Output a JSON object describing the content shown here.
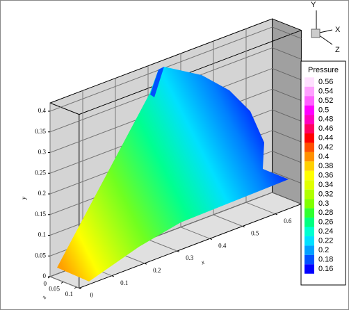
{
  "chart_data": {
    "type": "contour3d",
    "xlabel": "x",
    "ylabel": "y",
    "zlabel": "z",
    "xlim": [
      0,
      0.68
    ],
    "ylim": [
      0,
      0.42
    ],
    "zlim": [
      0,
      0.11
    ],
    "xticks": [
      0,
      0.1,
      0.2,
      0.3,
      0.4,
      0.5,
      0.6
    ],
    "yticks": [
      0,
      0.05,
      0.1,
      0.15,
      0.2,
      0.25,
      0.3,
      0.35,
      0.4
    ],
    "zticks": [
      0,
      0.05,
      0.1
    ],
    "grid": true,
    "legend_title": "Pressure",
    "levels": [
      0.56,
      0.54,
      0.52,
      0.5,
      0.48,
      0.46,
      0.44,
      0.42,
      0.4,
      0.38,
      0.36,
      0.34,
      0.32,
      0.3,
      0.28,
      0.26,
      0.24,
      0.22,
      0.2,
      0.18,
      0.16
    ],
    "colors": [
      "#ffe0ff",
      "#ffa0ff",
      "#ff60ff",
      "#ff00ff",
      "#ff00c0",
      "#ff0060",
      "#ff0000",
      "#ff5000",
      "#ff9000",
      "#ffd000",
      "#ffff00",
      "#e0ff00",
      "#b0ff00",
      "#80ff00",
      "#30ff30",
      "#00ff80",
      "#00ffd0",
      "#00e0ff",
      "#00a0ff",
      "#0050ff",
      "#0000ff"
    ],
    "triad": {
      "y": "Y",
      "x": "X",
      "z": "Z"
    }
  }
}
